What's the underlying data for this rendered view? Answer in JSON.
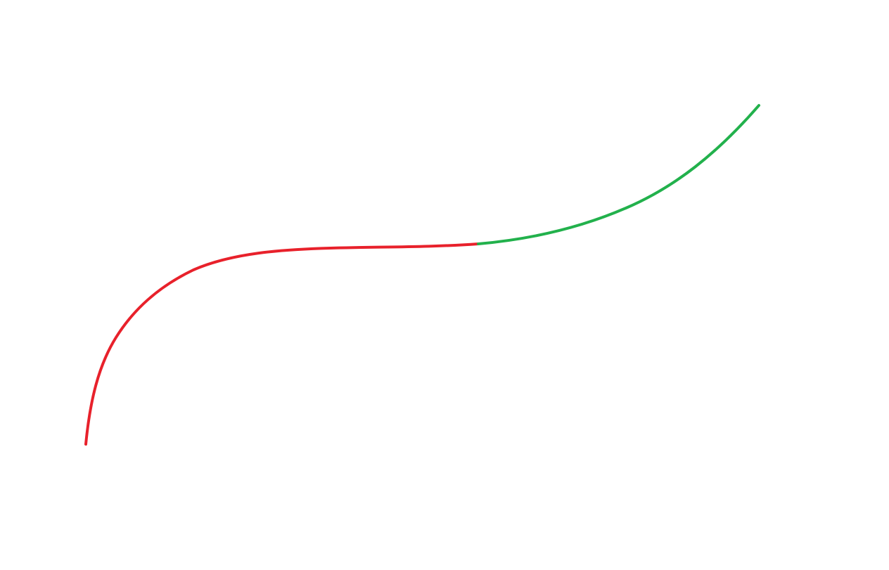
{
  "canvas": {
    "background": "#ffffff"
  },
  "curve": {
    "segments": [
      {
        "name": "red-segment",
        "color": "#e8212b"
      },
      {
        "name": "green-segment",
        "color": "#22b14c"
      }
    ]
  }
}
